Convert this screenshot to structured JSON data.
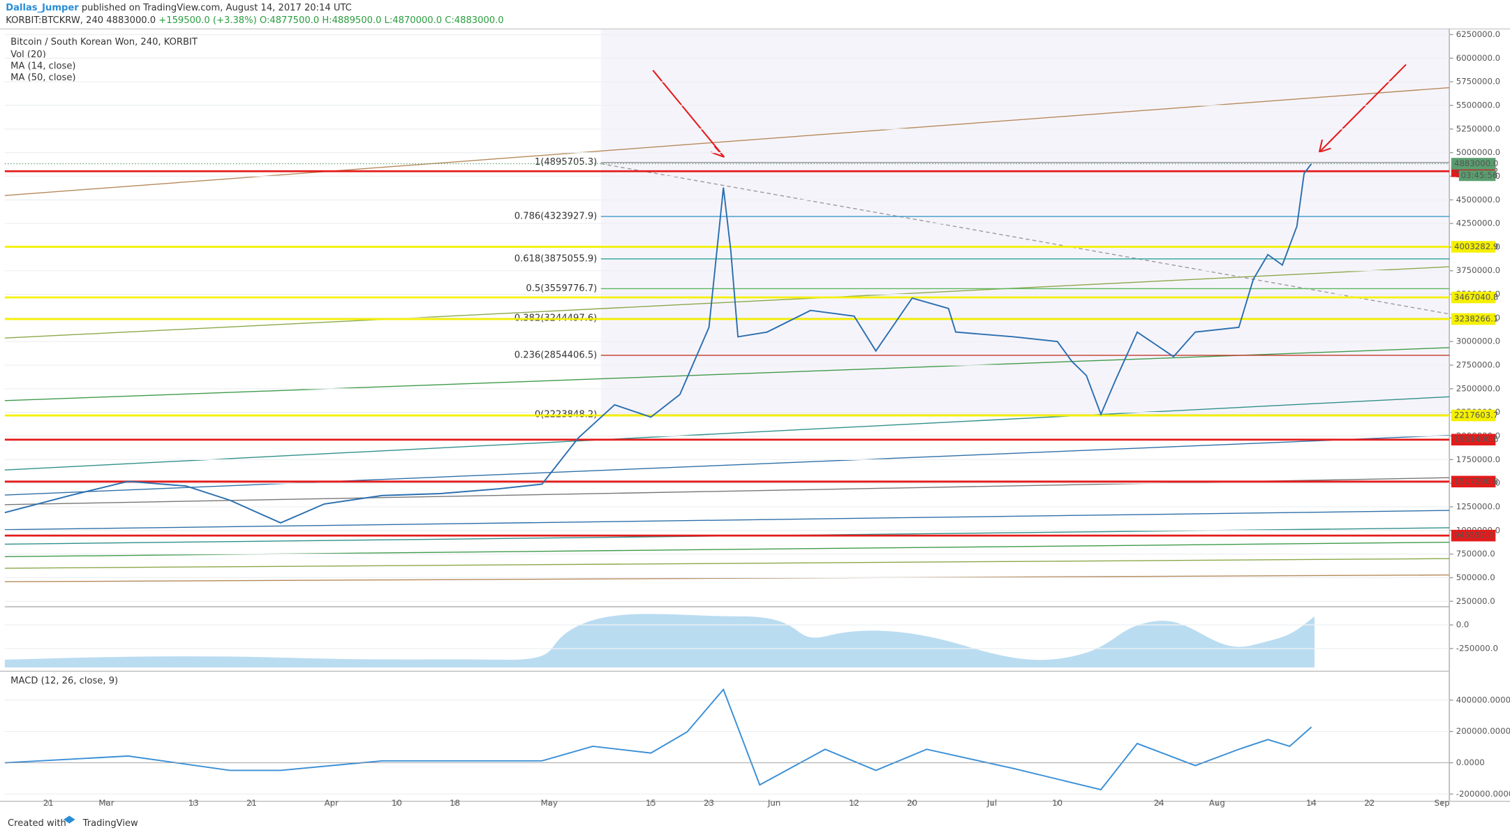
{
  "header": {
    "author": "Dallas_Jumper",
    "published": "published on TradingView.com, August 14, 2017 20:14 UTC"
  },
  "quote": {
    "symbol": "KORBIT:BTCKRW, 240",
    "last": "4883000.0",
    "change": "+159500.0 (+3.38%)",
    "ohlc": "O:4877500.0 H:4889500.0 L:4870000.0 C:4883000.0"
  },
  "chart_data": [
    {
      "type": "line",
      "title": "Bitcoin / South Korean Won, 240, KORBIT",
      "indicators": [
        "Vol (20)",
        "MA (14, close)",
        "MA (50, close)"
      ],
      "x": [
        "02-15",
        "02-24",
        "03-04",
        "03-12",
        "03-18",
        "03-25",
        "03-31",
        "04-08",
        "04-16",
        "04-24",
        "04-30",
        "05-05",
        "05-10",
        "05-15",
        "05-19",
        "05-23",
        "05-25",
        "05-26",
        "05-27",
        "05-31",
        "06-06",
        "06-12",
        "06-15",
        "06-20",
        "06-25",
        "06-26",
        "07-04",
        "07-10",
        "07-12",
        "07-14",
        "07-16",
        "07-18",
        "07-21",
        "07-26",
        "07-29",
        "08-04",
        "08-06",
        "08-08",
        "08-10",
        "08-12",
        "08-13",
        "08-14"
      ],
      "values": [
        1190000,
        1370000,
        1520000,
        1470000,
        1320000,
        1080000,
        1280000,
        1370000,
        1390000,
        1440000,
        1490000,
        1980000,
        2330000,
        2200000,
        2440000,
        3150000,
        4630000,
        3970000,
        3050000,
        3100000,
        3330000,
        3270000,
        2900000,
        3460000,
        3350000,
        3100000,
        3050000,
        3000000,
        2790000,
        2640000,
        2230000,
        2590000,
        3100000,
        2840000,
        3100000,
        3150000,
        3660000,
        3920000,
        3810000,
        4220000,
        4780000,
        4883000
      ],
      "color": "#2a6fb0",
      "xlim": [
        "02-15",
        "09-02"
      ],
      "xticks": [
        {
          "value": "02-21",
          "label": "21"
        },
        {
          "value": "03-01",
          "label": "Mar"
        },
        {
          "value": "03-13",
          "label": "13"
        },
        {
          "value": "03-21",
          "label": "21"
        },
        {
          "value": "04-01",
          "label": "Apr"
        },
        {
          "value": "04-10",
          "label": "10"
        },
        {
          "value": "04-18",
          "label": "18"
        },
        {
          "value": "05-01",
          "label": "May"
        },
        {
          "value": "05-15",
          "label": "15"
        },
        {
          "value": "05-23",
          "label": "23"
        },
        {
          "value": "06-01",
          "label": "Jun"
        },
        {
          "value": "06-12",
          "label": "12"
        },
        {
          "value": "06-20",
          "label": "20"
        },
        {
          "value": "07-01",
          "label": "Jul"
        },
        {
          "value": "07-10",
          "label": "10"
        },
        {
          "value": "07-24",
          "label": "24"
        },
        {
          "value": "08-01",
          "label": "Aug"
        },
        {
          "value": "08-14",
          "label": "14"
        },
        {
          "value": "08-22",
          "label": "22"
        },
        {
          "value": "09-01",
          "label": "Sep"
        }
      ],
      "ylim": [
        -450000,
        6310000
      ],
      "yticks": [
        {
          "value": 6250000,
          "label": "6250000.0"
        },
        {
          "value": 6000000,
          "label": "6000000.0"
        },
        {
          "value": 5750000,
          "label": "5750000.0"
        },
        {
          "value": 5500000,
          "label": "5500000.0"
        },
        {
          "value": 5250000,
          "label": "5250000.0"
        },
        {
          "value": 5000000,
          "label": "5000000.0"
        },
        {
          "value": 4750000,
          "label": "4750000.0"
        },
        {
          "value": 4500000,
          "label": "4500000.0"
        },
        {
          "value": 4250000,
          "label": "4250000.0"
        },
        {
          "value": 4000000,
          "label": "4000000.0"
        },
        {
          "value": 3750000,
          "label": "3750000.0"
        },
        {
          "value": 3500000,
          "label": "3500000.0"
        },
        {
          "value": 3250000,
          "label": "3250000.0"
        },
        {
          "value": 3000000,
          "label": "3000000.0"
        },
        {
          "value": 2750000,
          "label": "2750000.0"
        },
        {
          "value": 2500000,
          "label": "2500000.0"
        },
        {
          "value": 2250000,
          "label": "2250000.0"
        },
        {
          "value": 2000000,
          "label": "2000000.0"
        },
        {
          "value": 1750000,
          "label": "1750000.0"
        },
        {
          "value": 1500000,
          "label": "1500000.0"
        },
        {
          "value": 1250000,
          "label": "1250000.0"
        },
        {
          "value": 1000000,
          "label": "1000000.0"
        },
        {
          "value": 750000,
          "label": "750000.0"
        },
        {
          "value": 500000,
          "label": "500000.0"
        },
        {
          "value": 250000,
          "label": "250000.0"
        },
        {
          "value": 0,
          "label": "0.0"
        },
        {
          "value": -250000,
          "label": "-250000.0"
        }
      ],
      "grid": true,
      "levels": [
        {
          "value": 4802823.2,
          "color": "#e31b1b"
        },
        {
          "value": 4003282.9,
          "color": "#f5f000"
        },
        {
          "value": 3467040.8,
          "color": "#f5f000"
        },
        {
          "value": 3238266.1,
          "color": "#f5f000"
        },
        {
          "value": 2217603.7,
          "color": "#f5f000"
        },
        {
          "value": 1961400.6,
          "color": "#e31b1b"
        },
        {
          "value": 1517290.8,
          "color": "#e31b1b"
        },
        {
          "value": 945557.3,
          "color": "#e31b1b"
        }
      ],
      "fib": [
        {
          "value": 4895705.3,
          "label": "1(4895705.3)",
          "color": "#999999"
        },
        {
          "value": 4323927.9,
          "label": "0.786(4323927.9)",
          "color": "#3a9ac7"
        },
        {
          "value": 3875055.9,
          "label": "0.618(3875055.9)",
          "color": "#2aa39a"
        },
        {
          "value": 3559776.7,
          "label": "0.5(3559776.7)",
          "color": "#5cb85c"
        },
        {
          "value": 3244497.6,
          "label": "0.382(3244497.6)",
          "color": "#9bbf2a"
        },
        {
          "value": 2854406.5,
          "label": "0.236(2854406.5)",
          "color": "#c0392b"
        },
        {
          "value": 2223848.2,
          "label": "0(2223848.2)",
          "color": "#888888"
        }
      ],
      "last_price": {
        "value": 4883000,
        "label": "4883000.0",
        "color": "#5a9e6f"
      },
      "countdown": "03:45:56"
    },
    {
      "type": "line",
      "title": "MACD (12, 26, close, 9)",
      "x": [
        "02-15",
        "03-04",
        "03-18",
        "03-25",
        "04-08",
        "04-30",
        "05-07",
        "05-15",
        "05-20",
        "05-25",
        "05-30",
        "06-08",
        "06-15",
        "06-22",
        "07-04",
        "07-16",
        "07-21",
        "07-29",
        "08-04",
        "08-08",
        "08-11",
        "08-14"
      ],
      "values": [
        0,
        43000,
        -49000,
        -49000,
        12000,
        12000,
        105000,
        62000,
        197000,
        468000,
        -142000,
        86000,
        -49000,
        86000,
        -37000,
        -172000,
        123000,
        -18000,
        86000,
        148000,
        105000,
        228000
      ],
      "color": "#3a8fd6",
      "ylim": [
        -234000,
        566000
      ],
      "yticks": [
        {
          "value": 400000,
          "label": "400000.0000"
        },
        {
          "value": 200000,
          "label": "200000.0000"
        },
        {
          "value": 0,
          "label": "0.0000"
        },
        {
          "value": -200000,
          "label": "-200000.0000"
        }
      ]
    }
  ],
  "footer": {
    "created": "Created with",
    "brand": "TradingView"
  }
}
